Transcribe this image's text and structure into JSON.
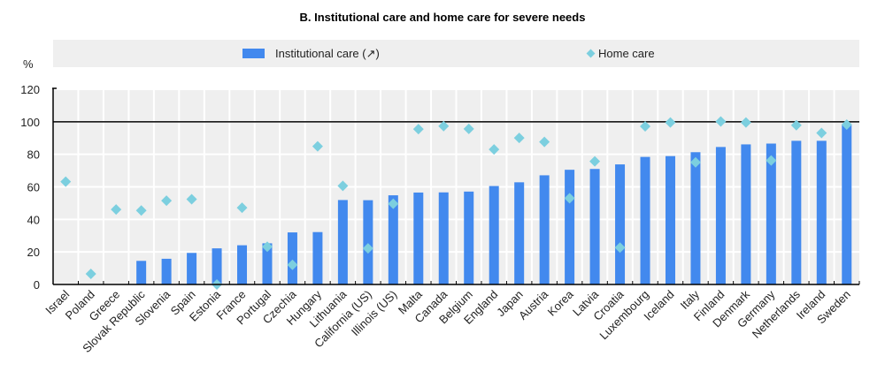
{
  "chart_data": {
    "type": "bar",
    "title": "B. Institutional care and home care for severe needs",
    "ylabel": "%",
    "xlabel": "",
    "ylim": [
      0,
      120
    ],
    "yticks": [
      0,
      20,
      40,
      60,
      80,
      100,
      120
    ],
    "reference_line": 100,
    "grid": true,
    "legend_position": "top",
    "colors": {
      "bar": "#4289ee",
      "marker": "#7ccfdf",
      "plot_bg": "#efefef",
      "grid": "#ffffff"
    },
    "categories": [
      "Israel",
      "Poland",
      "Greece",
      "Slovak Republic",
      "Slovenia",
      "Spain",
      "Estonia",
      "France",
      "Portugal",
      "Czechia",
      "Hungary",
      "Lithuania",
      "California (US)",
      "Illinois (US)",
      "Malta",
      "Canada",
      "Belgium",
      "England",
      "Japan",
      "Austria",
      "Korea",
      "Latvia",
      "Croatia",
      "Luxembourg",
      "Iceland",
      "Italy",
      "Finland",
      "Denmark",
      "Germany",
      "Netherlands",
      "Ireland",
      "Sweden"
    ],
    "series": [
      {
        "name": "Institutional care (↗)",
        "type": "bar",
        "values": [
          null,
          null,
          null,
          14.5,
          15.8,
          19.4,
          22.2,
          24.1,
          25.3,
          32,
          32.2,
          51.9,
          51.8,
          54.8,
          56.5,
          56.6,
          57.1,
          60.5,
          62.8,
          67.1,
          70.5,
          71,
          73.8,
          78.4,
          78.9,
          81.3,
          84.5,
          86.1,
          86.6,
          88.3,
          88.3,
          98.4
        ]
      },
      {
        "name": "Home care",
        "type": "scatter",
        "values": [
          63.2,
          6.5,
          46.1,
          45.5,
          51.5,
          52.4,
          0,
          47.2,
          23.2,
          12.1,
          84.9,
          60.6,
          22.2,
          49.6,
          95.5,
          97.3,
          95.6,
          83,
          90.1,
          87.6,
          53,
          75.7,
          22.7,
          97.2,
          99.6,
          75.1,
          100.2,
          99.6,
          76.2,
          97.9,
          93.1,
          98.3
        ]
      }
    ]
  }
}
